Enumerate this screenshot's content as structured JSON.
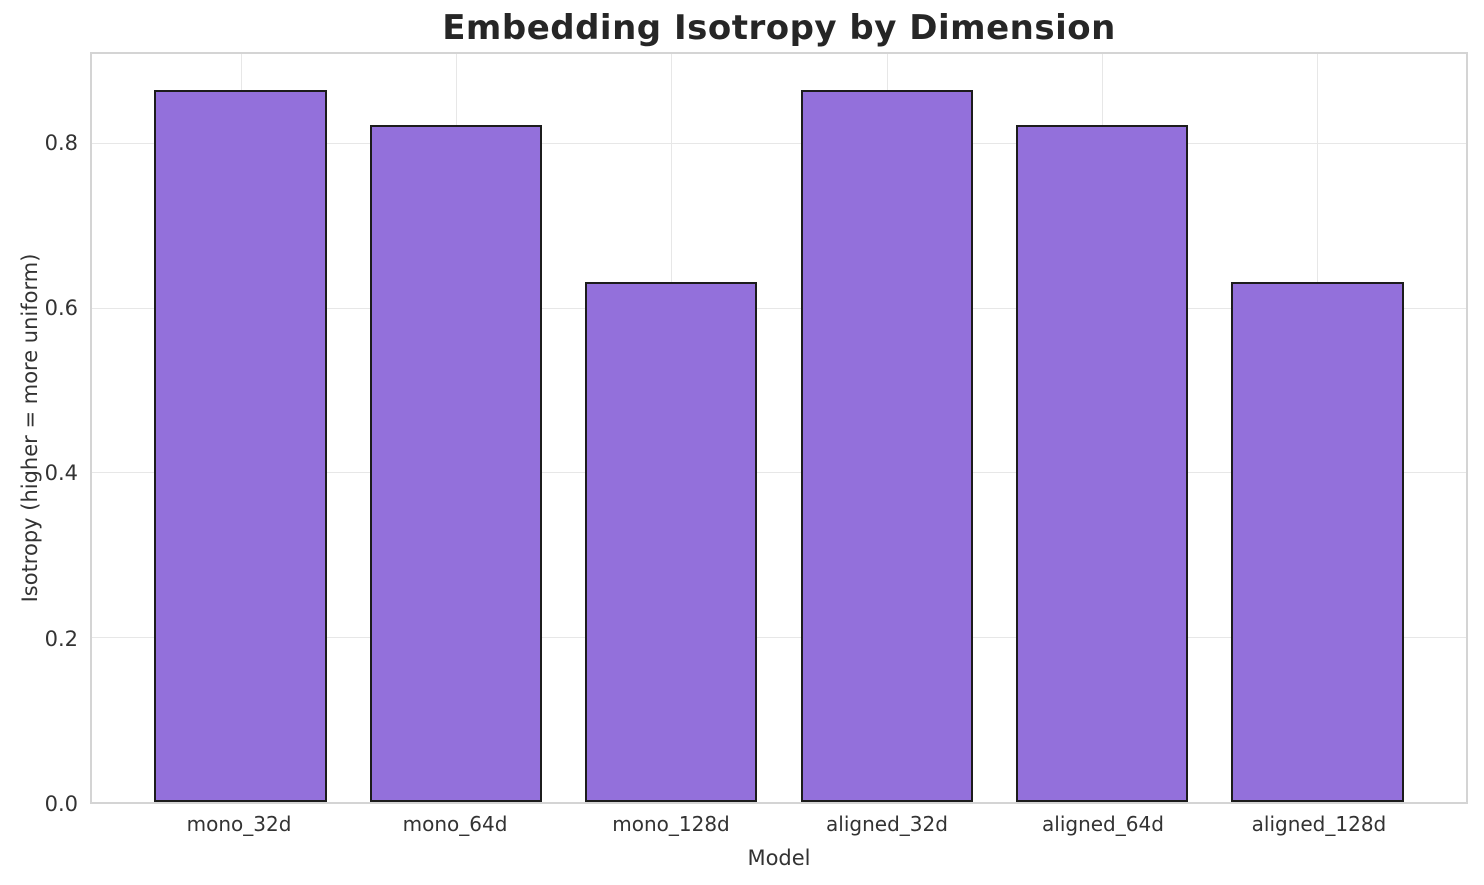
{
  "chart_data": {
    "type": "bar",
    "title": "Embedding Isotropy by Dimension",
    "xlabel": "Model",
    "ylabel": "Isotropy (higher = more uniform)",
    "categories": [
      "mono_32d",
      "mono_64d",
      "mono_128d",
      "aligned_32d",
      "aligned_64d",
      "aligned_128d"
    ],
    "values": [
      0.866,
      0.824,
      0.633,
      0.866,
      0.824,
      0.633
    ],
    "yticks": [
      0.0,
      0.2,
      0.4,
      0.6,
      0.8
    ],
    "ytick_labels": [
      "0.0",
      "0.2",
      "0.4",
      "0.6",
      "0.8"
    ],
    "ylim": [
      0,
      0.91
    ],
    "grid": true,
    "legend_position": "none",
    "colors": {
      "bar_fill": "#9370DB",
      "bar_edge": "#1c1c1c",
      "grid": "#e7e7e7",
      "spine": "#d4d4d4",
      "title_text": "#262626",
      "tick_text": "#333333"
    }
  }
}
